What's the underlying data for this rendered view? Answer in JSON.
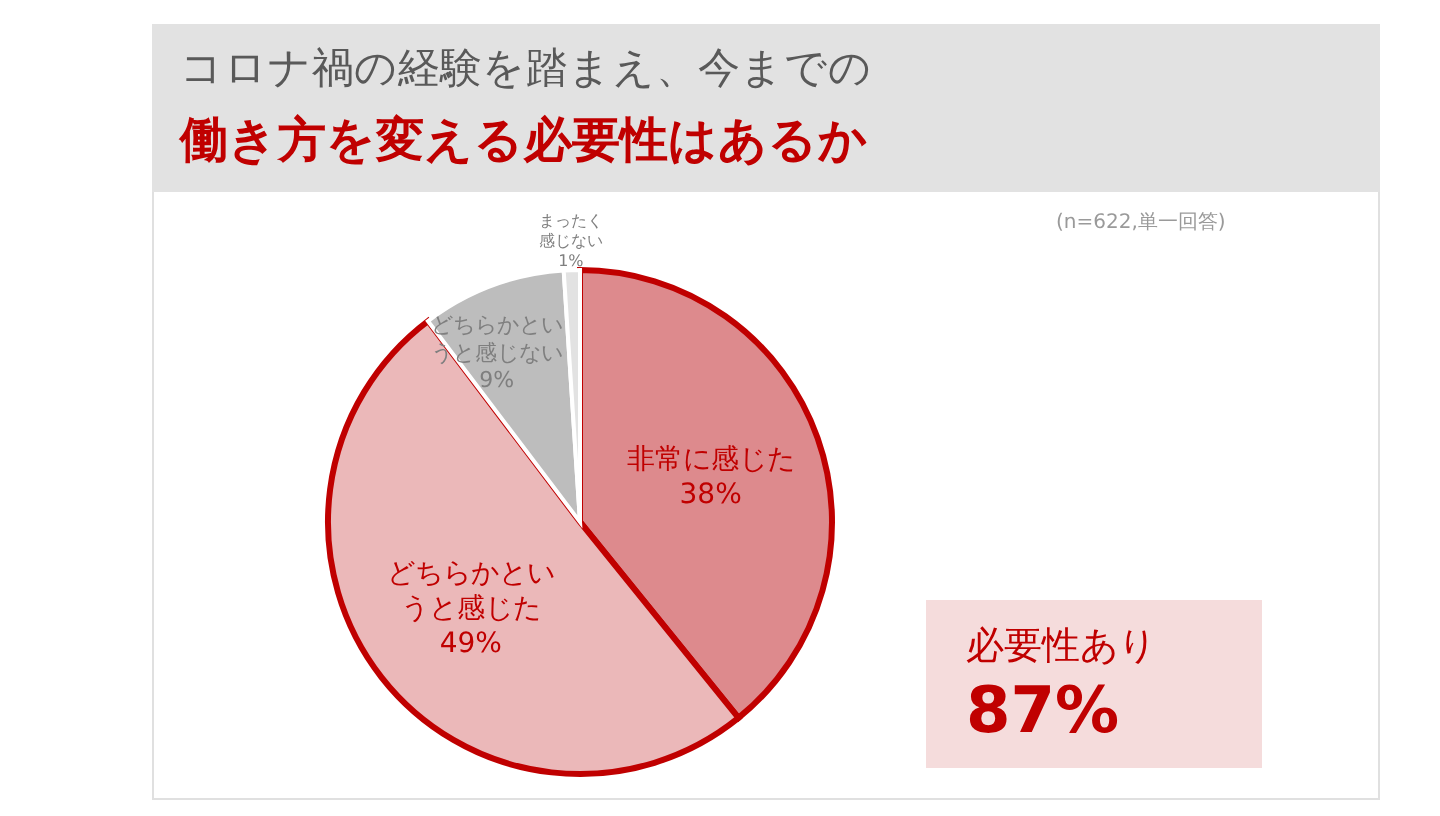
{
  "chart_data": {
    "type": "pie",
    "title": "コロナ禍の経験を踏まえ、今までの",
    "subtitle": "働き方を変える必要性はあるか",
    "categories": [
      "非常に感じた",
      "どちらかというと感じた",
      "どちらかというと感じない",
      "まったく感じない"
    ],
    "values": [
      38,
      49,
      9,
      1
    ],
    "colors": [
      "#dd8a8d",
      "#ebb8b9",
      "#bdbdbd",
      "#e2e2e2"
    ],
    "value_labels": [
      "38%",
      "49%",
      "9%",
      "1%"
    ],
    "annotations": [
      "(n=622,単一回答)",
      "必要性あり",
      "87%"
    ]
  }
}
